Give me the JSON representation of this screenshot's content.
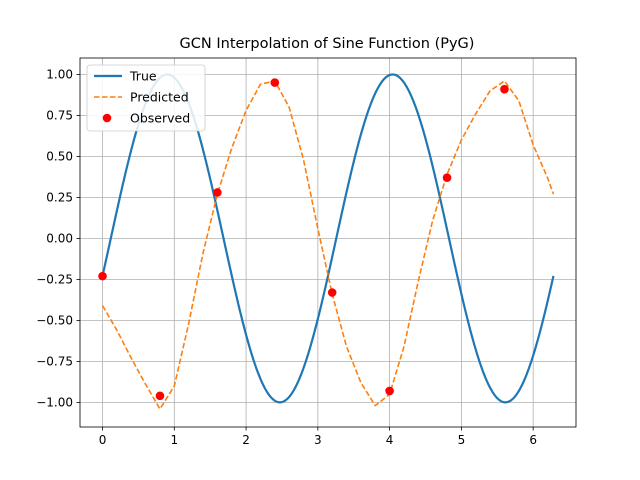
{
  "chart_data": {
    "type": "line",
    "title": "GCN Interpolation of Sine Function (PyG)",
    "xlabel": "",
    "ylabel": "",
    "xlim": [
      -0.314,
      6.597
    ],
    "ylim": [
      -1.15,
      1.1
    ],
    "xticks": [
      0,
      1,
      2,
      3,
      4,
      5,
      6
    ],
    "yticks": [
      -1.0,
      -0.75,
      -0.5,
      -0.25,
      0.0,
      0.25,
      0.5,
      0.75,
      1.0
    ],
    "ytick_labels": [
      "−1.00",
      "−0.75",
      "−0.50",
      "−0.25",
      "0.00",
      "0.25",
      "0.50",
      "0.75",
      "1.00"
    ],
    "grid": true,
    "legend_position": "top-left",
    "series": [
      {
        "name": "True",
        "style": "solid",
        "color": "#1f77b4",
        "function": "sin(2x - 0.23)",
        "x_range": [
          0,
          6.283
        ],
        "samples": 200
      },
      {
        "name": "Predicted",
        "style": "dashed",
        "color": "#ff7f0e",
        "x": [
          0.0,
          0.2,
          0.4,
          0.6,
          0.8,
          1.0,
          1.2,
          1.4,
          1.6,
          1.8,
          2.0,
          2.2,
          2.4,
          2.6,
          2.8,
          3.0,
          3.2,
          3.4,
          3.6,
          3.8,
          4.0,
          4.2,
          4.4,
          4.6,
          4.8,
          5.0,
          5.2,
          5.4,
          5.6,
          5.8,
          6.0,
          6.2,
          6.283
        ],
        "y": [
          -0.41,
          -0.56,
          -0.73,
          -0.89,
          -1.04,
          -0.9,
          -0.52,
          -0.09,
          0.27,
          0.55,
          0.78,
          0.94,
          0.96,
          0.8,
          0.48,
          0.06,
          -0.34,
          -0.66,
          -0.88,
          -1.02,
          -0.95,
          -0.66,
          -0.26,
          0.11,
          0.39,
          0.6,
          0.76,
          0.9,
          0.96,
          0.84,
          0.57,
          0.37,
          0.27
        ]
      },
      {
        "name": "Observed",
        "style": "markers",
        "color": "#ff0000",
        "x": [
          0.0,
          0.8,
          1.6,
          2.4,
          3.2,
          4.0,
          4.8,
          5.6
        ],
        "y": [
          -0.23,
          -0.96,
          0.28,
          0.95,
          -0.33,
          -0.93,
          0.37,
          0.91
        ]
      }
    ]
  }
}
